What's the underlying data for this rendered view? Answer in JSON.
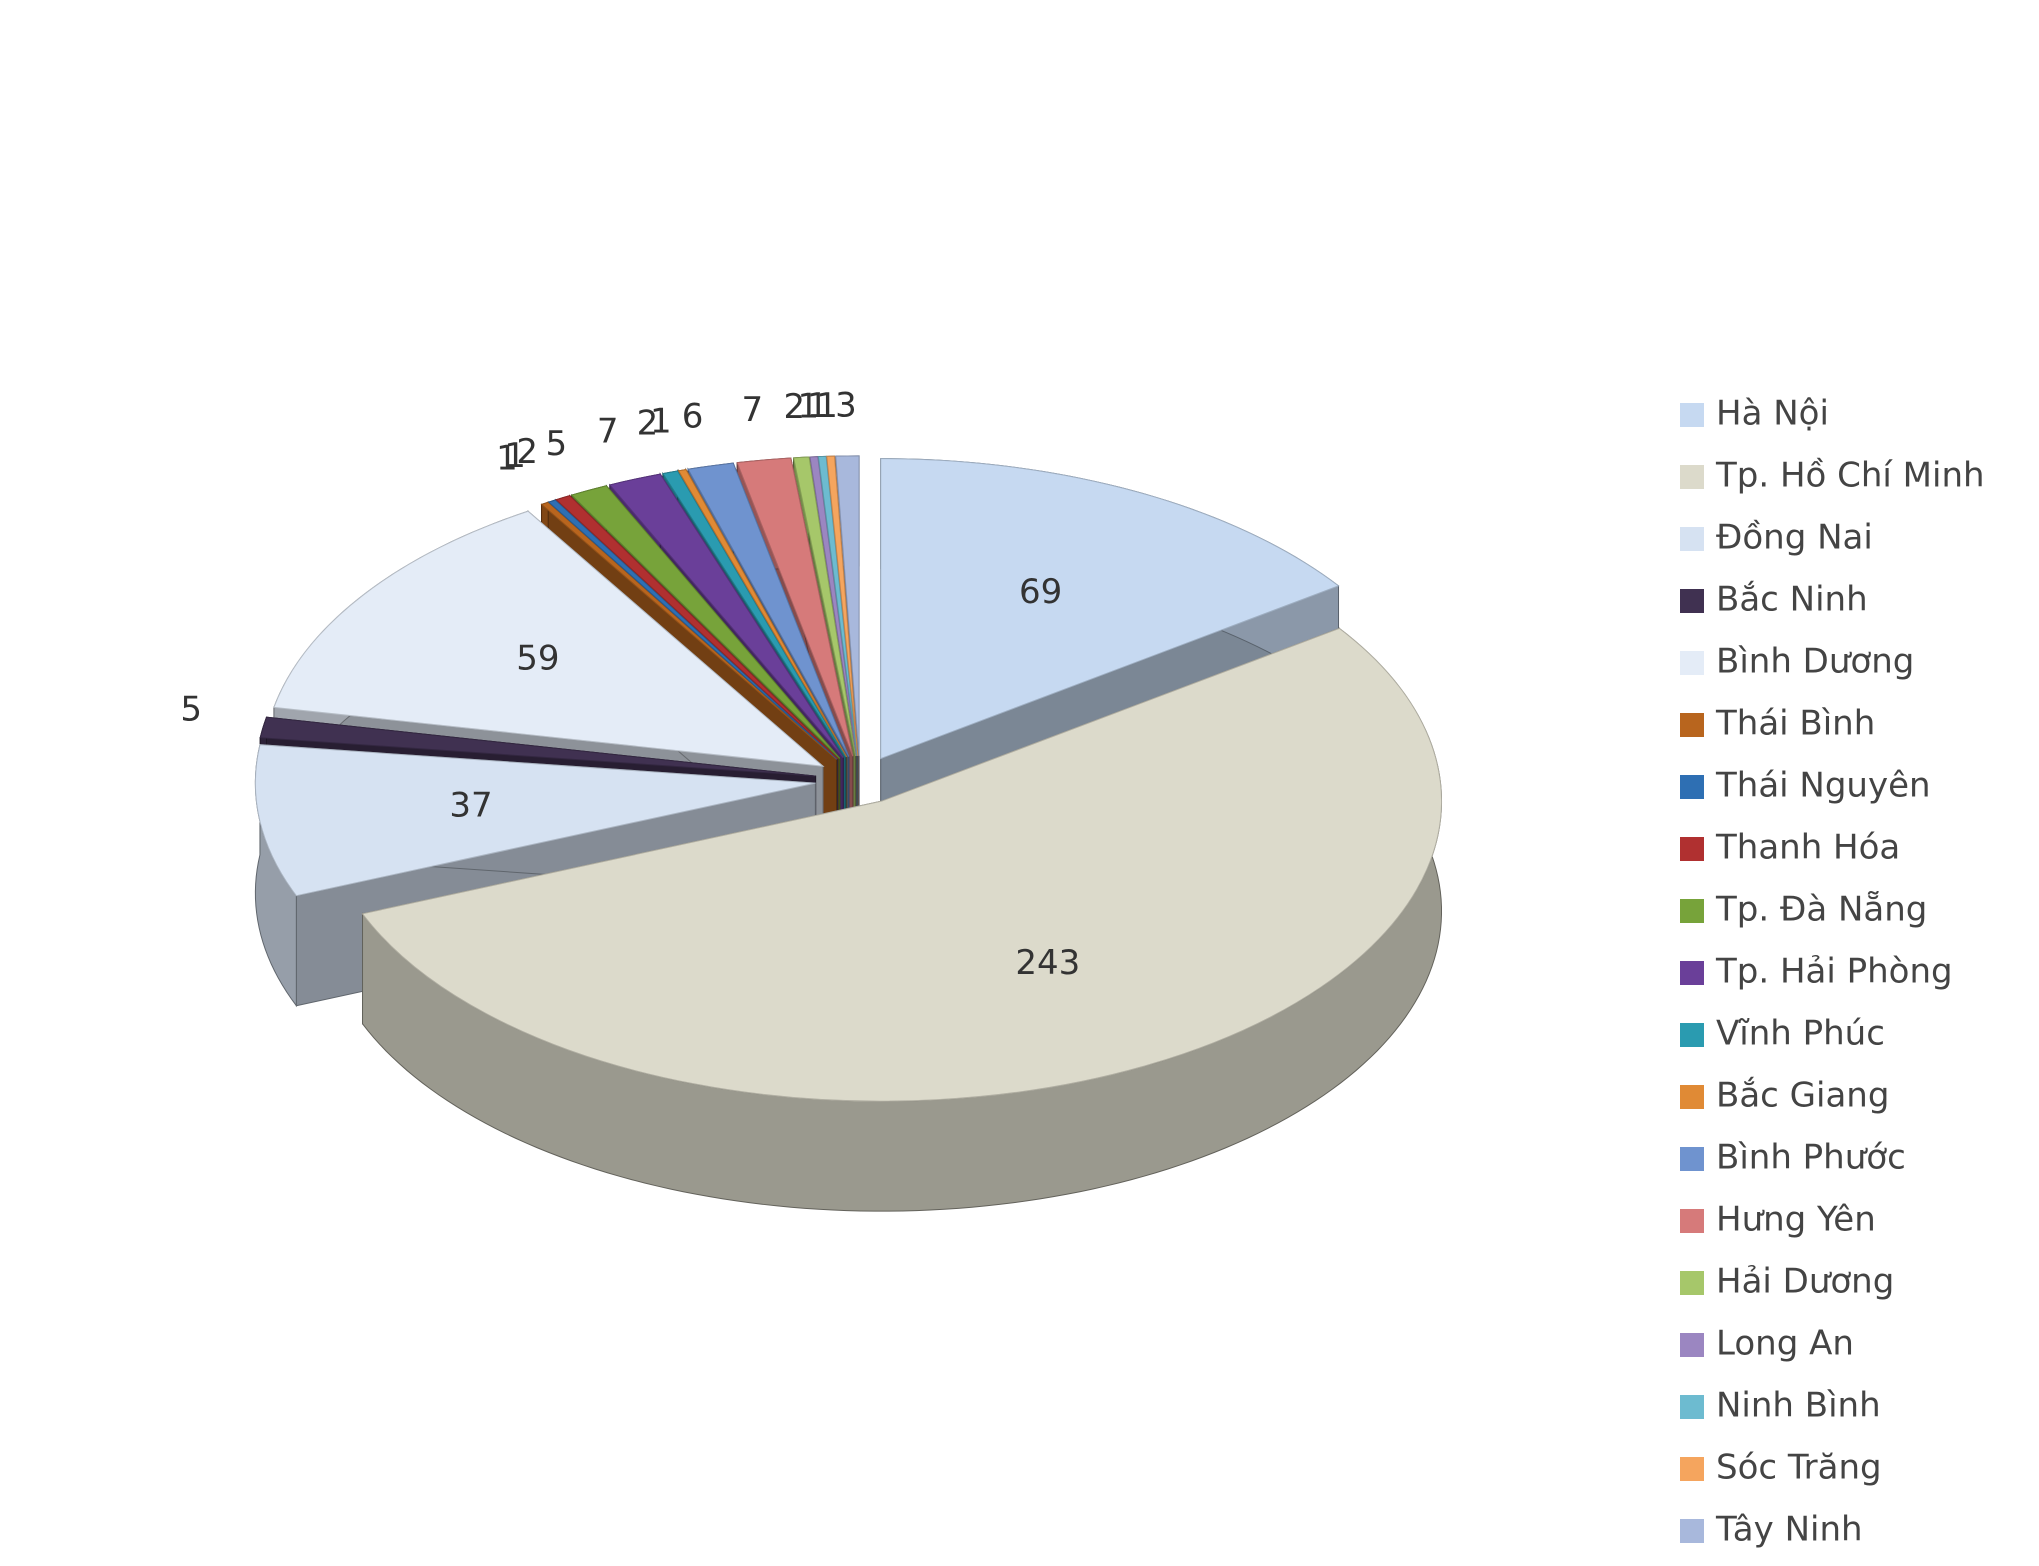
{
  "chart_data": {
    "type": "pie",
    "categories": [
      "Hà Nội",
      "Tp. Hồ Chí Minh",
      "Đồng Nai",
      "Bắc Ninh",
      "Bình Dương",
      "Thái Bình",
      "Thái Nguyên",
      "Thanh Hóa",
      "Tp. Đà Nẵng",
      "Tp. Hải Phòng",
      "Vĩnh Phúc",
      "Bắc Giang",
      "Bình Phước",
      "Hưng Yên",
      "Hải Dương",
      "Long An",
      "Ninh Bình",
      "Sóc Trăng",
      "Tây Ninh"
    ],
    "values": [
      69,
      243,
      37,
      5,
      59,
      1,
      1,
      2,
      5,
      7,
      2,
      1,
      6,
      7,
      2,
      1,
      1,
      1,
      3
    ],
    "colors": [
      "#c6d9f1",
      "#dcdacb",
      "#d6e2f2",
      "#403151",
      "#e4ecf7",
      "#b8651e",
      "#2e6fb3",
      "#b03030",
      "#77a33a",
      "#6a3f99",
      "#2a9bb0",
      "#e08a35",
      "#6f93cf",
      "#d67a7a",
      "#a6c76a",
      "#9b86c1",
      "#6dbbd0",
      "#f5a55e",
      "#a8b8dc"
    ],
    "legend": "right"
  }
}
